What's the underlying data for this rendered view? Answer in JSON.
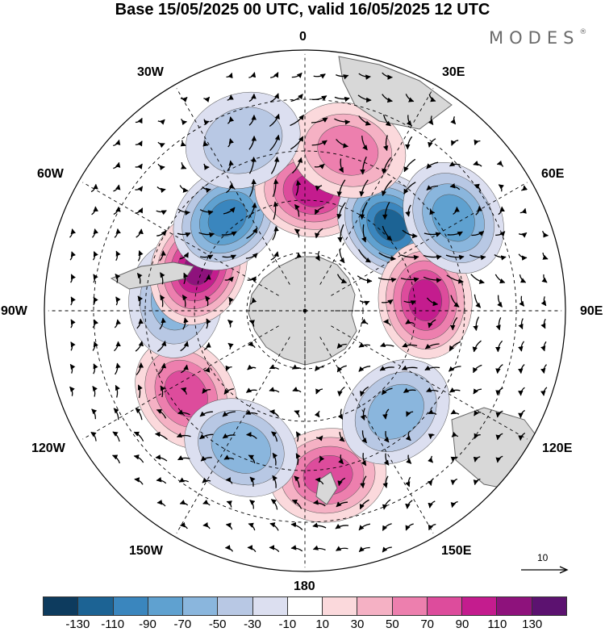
{
  "title": "Base 15/05/2025 00 UTC, valid 16/05/2025 12 UTC",
  "logo": {
    "text": "MODES",
    "mark": "®"
  },
  "longitude_labels": {
    "lon_0": "0",
    "lon_30e": "30E",
    "lon_60e": "60E",
    "lon_90e": "90E",
    "lon_120e": "120E",
    "lon_150e": "150E",
    "lon_180": "180",
    "lon_150w": "150W",
    "lon_120w": "120W",
    "lon_90w": "90W",
    "lon_60w": "60W",
    "lon_30w": "30W"
  },
  "vector_scale": {
    "label": "10",
    "icon": "arrow-right-icon"
  },
  "colorbar": {
    "colors": [
      "#0d3b5e",
      "#1c6394",
      "#3a86be",
      "#5fa1d0",
      "#8ab6dd",
      "#b8c8e4",
      "#dcdff0",
      "#ffffff",
      "#fbd9dc",
      "#f5b1c4",
      "#ed7fae",
      "#dd4c9c",
      "#c41c8e",
      "#8e127c",
      "#5c1270"
    ],
    "tick_labels": [
      "-130",
      "-110",
      "-90",
      "-70",
      "-50",
      "-30",
      "-10",
      "10",
      "30",
      "50",
      "70",
      "90",
      "110",
      "130"
    ]
  },
  "anomaly_cells": [
    {
      "lon": 8,
      "lat": -35,
      "value": 70
    },
    {
      "lon": -55,
      "lat": -42,
      "value": 75
    },
    {
      "lon": -25,
      "lat": -40,
      "value": -50
    },
    {
      "lon": -95,
      "lat": -47,
      "value": -65
    },
    {
      "lon": -112,
      "lat": -52,
      "value": 110
    },
    {
      "lon": -140,
      "lat": -50,
      "value": -95
    },
    {
      "lon": 176,
      "lat": -50,
      "value": 105
    },
    {
      "lon": 135,
      "lat": -50,
      "value": -120
    },
    {
      "lon": 95,
      "lat": -50,
      "value": 95
    },
    {
      "lon": 42,
      "lat": -45,
      "value": -55
    },
    {
      "lon": 122,
      "lat": -32,
      "value": -75
    },
    {
      "lon": 165,
      "lat": -35,
      "value": 55
    },
    {
      "lon": -160,
      "lat": -30,
      "value": -35
    }
  ]
}
